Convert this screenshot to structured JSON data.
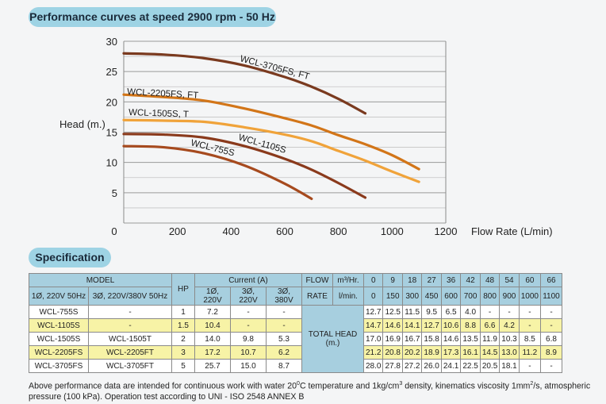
{
  "header": {
    "title": "Performance curves at speed 2900 rpm - 50 Hz"
  },
  "spec_title": "Specification",
  "chart_data": {
    "type": "line",
    "xlabel": "Flow Rate (L/min)",
    "ylabel": "Head (m.)",
    "xlim": [
      0,
      1200
    ],
    "ylim": [
      0,
      30
    ],
    "x_ticks": [
      "0",
      "200",
      "400",
      "600",
      "800",
      "1000",
      "1200"
    ],
    "y_ticks": [
      "5",
      "10",
      "15",
      "20",
      "25",
      "30"
    ],
    "grid": "horizontal",
    "series": [
      {
        "name": "WCL-3705FS, FT",
        "color": "#7a3a1f",
        "x": [
          0,
          150,
          300,
          450,
          600,
          700,
          800,
          900
        ],
        "y": [
          28.0,
          27.8,
          27.2,
          26.0,
          24.1,
          22.5,
          20.5,
          18.1
        ]
      },
      {
        "name": "WCL-2205FS, FT",
        "color": "#d27518",
        "x": [
          0,
          150,
          300,
          450,
          600,
          700,
          800,
          900,
          1000,
          1100
        ],
        "y": [
          21.2,
          20.8,
          20.2,
          18.9,
          17.3,
          16.1,
          14.5,
          13.0,
          11.2,
          8.9
        ]
      },
      {
        "name": "WCL-1505S, T",
        "color": "#f0a33a",
        "x": [
          0,
          150,
          300,
          450,
          600,
          700,
          800,
          900,
          1000,
          1100
        ],
        "y": [
          17.0,
          16.9,
          16.7,
          15.8,
          14.6,
          13.5,
          11.9,
          10.3,
          8.5,
          6.8
        ]
      },
      {
        "name": "WCL-1105S",
        "color": "#8a3a1c",
        "x": [
          0,
          150,
          300,
          450,
          600,
          700,
          800,
          900
        ],
        "y": [
          14.7,
          14.6,
          14.1,
          12.7,
          10.6,
          8.8,
          6.6,
          4.2
        ]
      },
      {
        "name": "WCL-755S",
        "color": "#a64a1e",
        "x": [
          0,
          150,
          300,
          450,
          600,
          700
        ],
        "y": [
          12.7,
          12.5,
          11.5,
          9.5,
          6.5,
          4.0
        ]
      }
    ]
  },
  "table": {
    "header1": {
      "model": "MODEL",
      "hp": "HP",
      "current": "Current (A)",
      "flow": "FLOW",
      "m3": "m³/Hr.",
      "m3_values": [
        "0",
        "9",
        "18",
        "27",
        "36",
        "42",
        "48",
        "54",
        "60",
        "66"
      ]
    },
    "header2": {
      "model1": "1Ø, 220V 50Hz",
      "model3": "3Ø, 220V/380V 50Hz",
      "c1": "1Ø, 220V",
      "c2": "3Ø, 220V",
      "c3": "3Ø, 380V",
      "rate": "RATE",
      "lmin": "l/min.",
      "lmin_values": [
        "0",
        "150",
        "300",
        "450",
        "600",
        "700",
        "800",
        "900",
        "1000",
        "1100"
      ]
    },
    "total_head": "TOTAL HEAD",
    "total_head_unit": "(m.)",
    "rows": [
      {
        "m1": "WCL-755S",
        "m3": "-",
        "hp": "1",
        "c1": "7.2",
        "c2": "-",
        "c3": "-",
        "heads": [
          "12.7",
          "12.5",
          "11.5",
          "9.5",
          "6.5",
          "4.0",
          "-",
          "-",
          "-",
          "-"
        ]
      },
      {
        "m1": "WCL-1105S",
        "m3": "-",
        "hp": "1.5",
        "c1": "10.4",
        "c2": "-",
        "c3": "-",
        "heads": [
          "14.7",
          "14.6",
          "14.1",
          "12.7",
          "10.6",
          "8.8",
          "6.6",
          "4.2",
          "-",
          "-"
        ]
      },
      {
        "m1": "WCL-1505S",
        "m3": "WCL-1505T",
        "hp": "2",
        "c1": "14.0",
        "c2": "9.8",
        "c3": "5.3",
        "heads": [
          "17.0",
          "16.9",
          "16.7",
          "15.8",
          "14.6",
          "13.5",
          "11.9",
          "10.3",
          "8.5",
          "6.8"
        ]
      },
      {
        "m1": "WCL-2205FS",
        "m3": "WCL-2205FT",
        "hp": "3",
        "c1": "17.2",
        "c2": "10.7",
        "c3": "6.2",
        "heads": [
          "21.2",
          "20.8",
          "20.2",
          "18.9",
          "17.3",
          "16.1",
          "14.5",
          "13.0",
          "11.2",
          "8.9"
        ]
      },
      {
        "m1": "WCL-3705FS",
        "m3": "WCL-3705FT",
        "hp": "5",
        "c1": "25.7",
        "c2": "15.0",
        "c3": "8.7",
        "heads": [
          "28.0",
          "27.8",
          "27.2",
          "26.0",
          "24.1",
          "22.5",
          "20.5",
          "18.1",
          "-",
          "-"
        ]
      }
    ]
  },
  "footnote": {
    "p1": "Above performance data are intended for continuous work with water 20",
    "sup1": "0",
    "p2": "C temperature and 1kg/cm",
    "sup2": "3",
    "p3": " density, kinematics viscosity 1mm",
    "sup3": "2",
    "p4": "/s, atmospheric pressure (100 kPa). Operation test according to UNI - ISO 2548 ANNEX B"
  }
}
